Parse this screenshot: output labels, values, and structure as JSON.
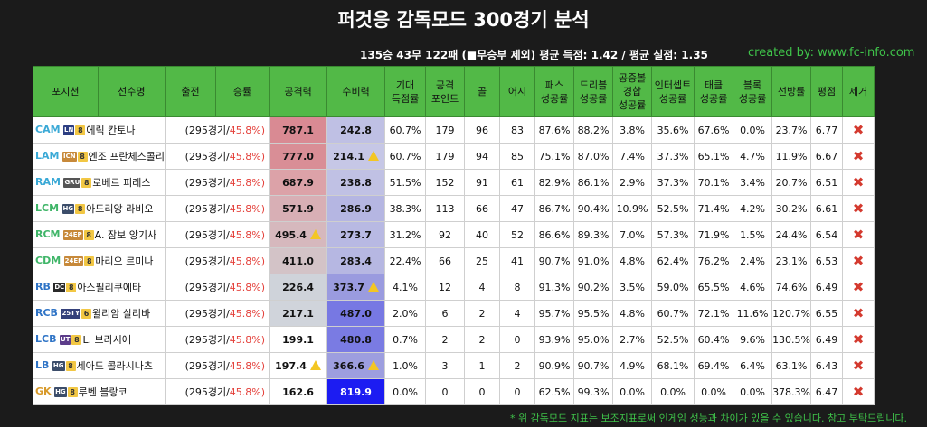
{
  "header": {
    "title": "퍼것응 감독모드 300경기 분석",
    "summary": "135승 43무 122패   (■무승부 제외)  평균 득점: 1.42 / 평균 실점: 1.35",
    "credit": "created by: www.fc-info.com"
  },
  "table": {
    "columns": [
      "포지션",
      "선수명",
      "출전",
      "승률",
      "공격력",
      "수비력",
      "기대\n득점률",
      "공격\n포인트",
      "골",
      "어시",
      "패스\n성공률",
      "드리블\n성공률",
      "공중볼\n경합\n성공률",
      "인터셉트\n성공률",
      "태클\n성공률",
      "블록\n성공률",
      "선방률",
      "평점",
      "제거"
    ],
    "rows": [
      {
        "pos": "CAM",
        "pos_color": "#3aa9d6",
        "season": "LN",
        "season_color": "#2c3e82",
        "grade": "8",
        "name": "에릭 칸토나",
        "games": "(295경기/",
        "winrate": "45.8%)",
        "attack": "787.1",
        "attack_bg": "#d98a93",
        "attack_warn": false,
        "defense": "242.8",
        "defense_bg": "#bfc0e4",
        "defense_warn": false,
        "xg": "60.7%",
        "ap": "179",
        "goals": "96",
        "assists": "83",
        "pass": "87.6%",
        "dribble": "88.2%",
        "aerial": "3.8%",
        "intercept": "35.6%",
        "tackle": "67.6%",
        "block": "0.0%",
        "save": "23.7%",
        "rating": "6.77"
      },
      {
        "pos": "LAM",
        "pos_color": "#3aa9d6",
        "season": "ICN",
        "season_color": "#c7893a",
        "grade": "8",
        "name": "엔조 프란체스콜리",
        "games": "(295경기/",
        "winrate": "45.8%)",
        "attack": "777.0",
        "attack_bg": "#d98e96",
        "attack_warn": false,
        "defense": "214.1",
        "defense_bg": "#c6c7e6",
        "defense_warn": true,
        "xg": "60.7%",
        "ap": "179",
        "goals": "94",
        "assists": "85",
        "pass": "75.1%",
        "dribble": "87.0%",
        "aerial": "7.4%",
        "intercept": "37.3%",
        "tackle": "65.1%",
        "block": "4.7%",
        "save": "11.9%",
        "rating": "6.67"
      },
      {
        "pos": "RAM",
        "pos_color": "#3aa9d6",
        "season": "GRU",
        "season_color": "#555555",
        "grade": "8",
        "name": "로베르 피레스",
        "games": "(295경기/",
        "winrate": "45.8%)",
        "attack": "687.9",
        "attack_bg": "#dca2a8",
        "attack_warn": false,
        "defense": "238.8",
        "defense_bg": "#c0c1e4",
        "defense_warn": false,
        "xg": "51.5%",
        "ap": "152",
        "goals": "91",
        "assists": "61",
        "pass": "82.9%",
        "dribble": "86.1%",
        "aerial": "2.9%",
        "intercept": "37.3%",
        "tackle": "70.1%",
        "block": "3.4%",
        "save": "20.7%",
        "rating": "6.51"
      },
      {
        "pos": "LCM",
        "pos_color": "#3fb568",
        "season": "HG",
        "season_color": "#3c4d6a",
        "grade": "8",
        "name": "아드리앙 라비오",
        "games": "(295경기/",
        "winrate": "45.8%)",
        "attack": "571.9",
        "attack_bg": "#d8afb5",
        "attack_warn": false,
        "defense": "286.9",
        "defense_bg": "#b5b6e2",
        "defense_warn": false,
        "xg": "38.3%",
        "ap": "113",
        "goals": "66",
        "assists": "47",
        "pass": "86.7%",
        "dribble": "90.4%",
        "aerial": "10.9%",
        "intercept": "52.5%",
        "tackle": "71.4%",
        "block": "4.2%",
        "save": "30.2%",
        "rating": "6.61"
      },
      {
        "pos": "RCM",
        "pos_color": "#3fb568",
        "season": "24EP",
        "season_color": "#c7893a",
        "grade": "8",
        "name": "A. 잠보 앙기사",
        "games": "(295경기/",
        "winrate": "45.8%)",
        "attack": "495.4",
        "attack_bg": "#d6b8bd",
        "attack_warn": true,
        "defense": "273.7",
        "defense_bg": "#b8b9e3",
        "defense_warn": false,
        "xg": "31.2%",
        "ap": "92",
        "goals": "40",
        "assists": "52",
        "pass": "86.6%",
        "dribble": "89.3%",
        "aerial": "7.0%",
        "intercept": "57.3%",
        "tackle": "71.9%",
        "block": "1.5%",
        "save": "24.4%",
        "rating": "6.54"
      },
      {
        "pos": "CDM",
        "pos_color": "#3fb568",
        "season": "24EP",
        "season_color": "#c7893a",
        "grade": "8",
        "name": "마리오 르미나",
        "games": "(295경기/",
        "winrate": "45.8%)",
        "attack": "411.0",
        "attack_bg": "#d3c3c7",
        "attack_warn": false,
        "defense": "283.4",
        "defense_bg": "#b6b7e2",
        "defense_warn": false,
        "xg": "22.4%",
        "ap": "66",
        "goals": "25",
        "assists": "41",
        "pass": "90.7%",
        "dribble": "91.0%",
        "aerial": "4.8%",
        "intercept": "62.4%",
        "tackle": "76.2%",
        "block": "2.4%",
        "save": "23.1%",
        "rating": "6.53"
      },
      {
        "pos": "RB",
        "pos_color": "#2f74c6",
        "season": "DC",
        "season_color": "#2a2a2a",
        "grade": "8",
        "name": "아스필리쿠에타",
        "games": "(295경기/",
        "winrate": "45.8%)",
        "attack": "226.4",
        "attack_bg": "#cfd3da",
        "attack_warn": false,
        "defense": "373.7",
        "defense_bg": "#9a9bdf",
        "defense_warn": true,
        "xg": "4.1%",
        "ap": "12",
        "goals": "4",
        "assists": "8",
        "pass": "91.3%",
        "dribble": "90.2%",
        "aerial": "3.5%",
        "intercept": "59.0%",
        "tackle": "65.5%",
        "block": "4.6%",
        "save": "74.6%",
        "rating": "6.49"
      },
      {
        "pos": "RCB",
        "pos_color": "#2f74c6",
        "season": "25TY",
        "season_color": "#34407a",
        "grade": "6",
        "name": "윌리암 살리바",
        "games": "(295경기/",
        "winrate": "45.8%)",
        "attack": "217.1",
        "attack_bg": "#d0d4db",
        "attack_warn": false,
        "defense": "487.0",
        "defense_bg": "#7778e3",
        "defense_warn": false,
        "xg": "2.0%",
        "ap": "6",
        "goals": "2",
        "assists": "4",
        "pass": "95.7%",
        "dribble": "95.5%",
        "aerial": "4.8%",
        "intercept": "60.7%",
        "tackle": "72.1%",
        "block": "11.6%",
        "save": "120.7%",
        "rating": "6.55"
      },
      {
        "pos": "LCB",
        "pos_color": "#2f74c6",
        "season": "UT",
        "season_color": "#5c3c8a",
        "grade": "8",
        "name": "L. 브라시에",
        "games": "(295경기/",
        "winrate": "45.8%)",
        "attack": "199.1",
        "attack_bg": "#ffffff",
        "attack_warn": false,
        "defense": "480.8",
        "defense_bg": "#7a7be3",
        "defense_warn": false,
        "xg": "0.7%",
        "ap": "2",
        "goals": "2",
        "assists": "0",
        "pass": "93.9%",
        "dribble": "95.0%",
        "aerial": "2.7%",
        "intercept": "52.5%",
        "tackle": "60.4%",
        "block": "9.6%",
        "save": "130.5%",
        "rating": "6.49"
      },
      {
        "pos": "LB",
        "pos_color": "#2f74c6",
        "season": "HG",
        "season_color": "#3c4d6a",
        "grade": "8",
        "name": "세아드 콜라시나츠",
        "games": "(295경기/",
        "winrate": "45.8%)",
        "attack": "197.4",
        "attack_bg": "#ffffff",
        "attack_warn": true,
        "defense": "366.6",
        "defense_bg": "#9d9edf",
        "defense_warn": true,
        "xg": "1.0%",
        "ap": "3",
        "goals": "1",
        "assists": "2",
        "pass": "90.9%",
        "dribble": "90.7%",
        "aerial": "4.9%",
        "intercept": "68.1%",
        "tackle": "69.4%",
        "block": "6.4%",
        "save": "63.1%",
        "rating": "6.43"
      },
      {
        "pos": "GK",
        "pos_color": "#d89a2a",
        "season": "HG",
        "season_color": "#3c4d6a",
        "grade": "8",
        "name": "루벤 블랑코",
        "games": "(295경기/",
        "winrate": "45.8%)",
        "attack": "162.6",
        "attack_bg": "#ffffff",
        "attack_warn": false,
        "defense": "819.9",
        "defense_bg": "#1c1cf2",
        "defense_text": "#ffffff",
        "defense_warn": false,
        "xg": "0.0%",
        "ap": "0",
        "goals": "0",
        "assists": "0",
        "pass": "62.5%",
        "dribble": "99.3%",
        "aerial": "0.0%",
        "intercept": "0.0%",
        "tackle": "0.0%",
        "block": "0.0%",
        "save": "378.3%",
        "rating": "6.47"
      }
    ],
    "remove_label": "✖"
  },
  "footnote": "* 위 감독모드 지표는 보조지표로써 인게임 성능과 차이가 있을 수 있습니다. 참고 부탁드립니다.",
  "icons": {
    "warning": "warning-icon",
    "remove": "remove-icon"
  }
}
